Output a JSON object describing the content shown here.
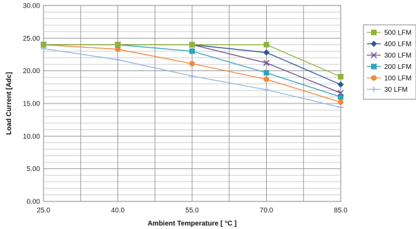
{
  "chart_data": {
    "type": "line",
    "xlabel": "Ambient Temperature [ °C ]",
    "ylabel": "Load Current [Adc]",
    "x": [
      25.0,
      40.0,
      55.0,
      70.0,
      85.0
    ],
    "x_tick_labels": [
      "25.0",
      "40.0",
      "55.0",
      "70.0",
      "85.0"
    ],
    "xlim": [
      25,
      85
    ],
    "ylim": [
      0,
      30
    ],
    "y_tick_labels": [
      "0.00",
      "5.00",
      "10.00",
      "15.00",
      "20.00",
      "25.00",
      "30.00"
    ],
    "grid": true,
    "legend_position": "right",
    "series": [
      {
        "name": "500 LFM",
        "values": [
          24.0,
          24.0,
          24.0,
          24.0,
          19.1
        ],
        "color": "#8db33a",
        "marker": "square"
      },
      {
        "name": "400 LFM",
        "values": [
          24.0,
          24.0,
          24.0,
          22.8,
          17.9
        ],
        "color": "#2e5597",
        "marker": "diamond"
      },
      {
        "name": "300 LFM",
        "values": [
          24.0,
          24.0,
          24.0,
          21.2,
          16.6
        ],
        "color": "#6a4d91",
        "marker": "x"
      },
      {
        "name": "200 LFM",
        "values": [
          24.0,
          24.0,
          23.0,
          19.7,
          16.0
        ],
        "color": "#31a3b6",
        "marker": "square"
      },
      {
        "name": "100 LFM",
        "values": [
          24.0,
          23.3,
          21.1,
          18.7,
          15.2
        ],
        "color": "#f0893b",
        "marker": "circle"
      },
      {
        "name": "30 LFM",
        "values": [
          23.4,
          21.7,
          19.2,
          17.1,
          14.4
        ],
        "color": "#98b4de",
        "marker": "plus"
      }
    ]
  }
}
